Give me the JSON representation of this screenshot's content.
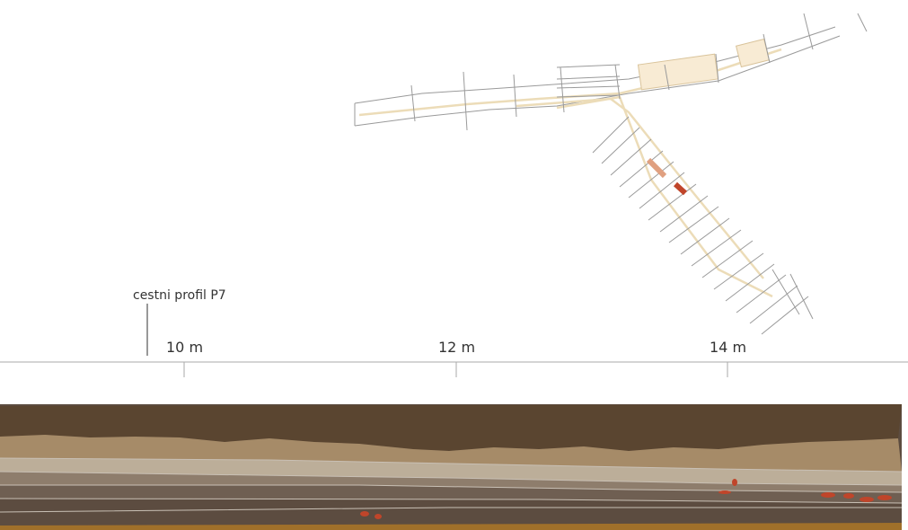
{
  "profile_label": "cestni profil P7",
  "scale": {
    "ticks": [
      "10 m",
      "12 m",
      "14 m"
    ]
  }
}
